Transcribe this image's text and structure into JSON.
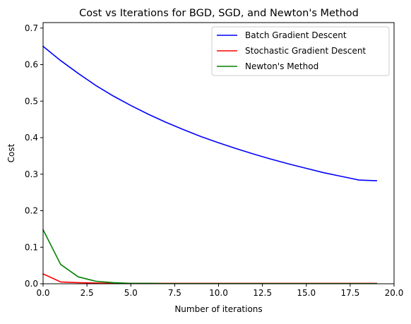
{
  "chart_data": {
    "type": "line",
    "title": "Cost vs Iterations for BGD, SGD, and Newton's Method",
    "xlabel": "Number of iterations",
    "ylabel": "Cost",
    "xlim": [
      0,
      20
    ],
    "ylim": [
      0,
      0.715
    ],
    "xticks": [
      0,
      2.5,
      5,
      7.5,
      10,
      12.5,
      15,
      17.5,
      20
    ],
    "xtick_labels": [
      "0.0",
      "2.5",
      "5.0",
      "7.5",
      "10.0",
      "12.5",
      "15.0",
      "17.5",
      "20.0"
    ],
    "yticks": [
      0,
      0.1,
      0.2,
      0.3,
      0.4,
      0.5,
      0.6,
      0.7
    ],
    "ytick_labels": [
      "0.0",
      "0.1",
      "0.2",
      "0.3",
      "0.4",
      "0.5",
      "0.6",
      "0.7"
    ],
    "grid": false,
    "legend_position": "top-right",
    "x": [
      0,
      1,
      2,
      3,
      4,
      5,
      6,
      7,
      8,
      9,
      10,
      11,
      12,
      13,
      14,
      15,
      16,
      17,
      18,
      19
    ],
    "series": [
      {
        "name": "Batch Gradient Descent",
        "color": "#0000ff",
        "values": [
          0.65,
          0.611,
          0.576,
          0.543,
          0.514,
          0.488,
          0.464,
          0.442,
          0.422,
          0.403,
          0.386,
          0.37,
          0.355,
          0.341,
          0.328,
          0.316,
          0.304,
          0.294,
          0.284,
          0.282
        ]
      },
      {
        "name": "Stochastic Gradient Descent",
        "color": "#ff0000",
        "values": [
          0.027,
          0.005,
          0.003,
          0.002,
          0.001,
          0.001,
          0.001,
          0.001,
          0.001,
          0.001,
          0.001,
          0.001,
          0.001,
          0.001,
          0.001,
          0.001,
          0.001,
          0.001,
          0.001,
          0.001
        ]
      },
      {
        "name": "Newton's Method",
        "color": "#008000",
        "values": [
          0.148,
          0.053,
          0.019,
          0.007,
          0.003,
          0.001,
          0.001,
          0.0005,
          0.0005,
          0.0005,
          0.0005,
          0.0005,
          0.0005,
          0.0005,
          0.0005,
          0.0005,
          0.0005,
          0.0005,
          0.0005,
          0.0005
        ]
      }
    ]
  }
}
